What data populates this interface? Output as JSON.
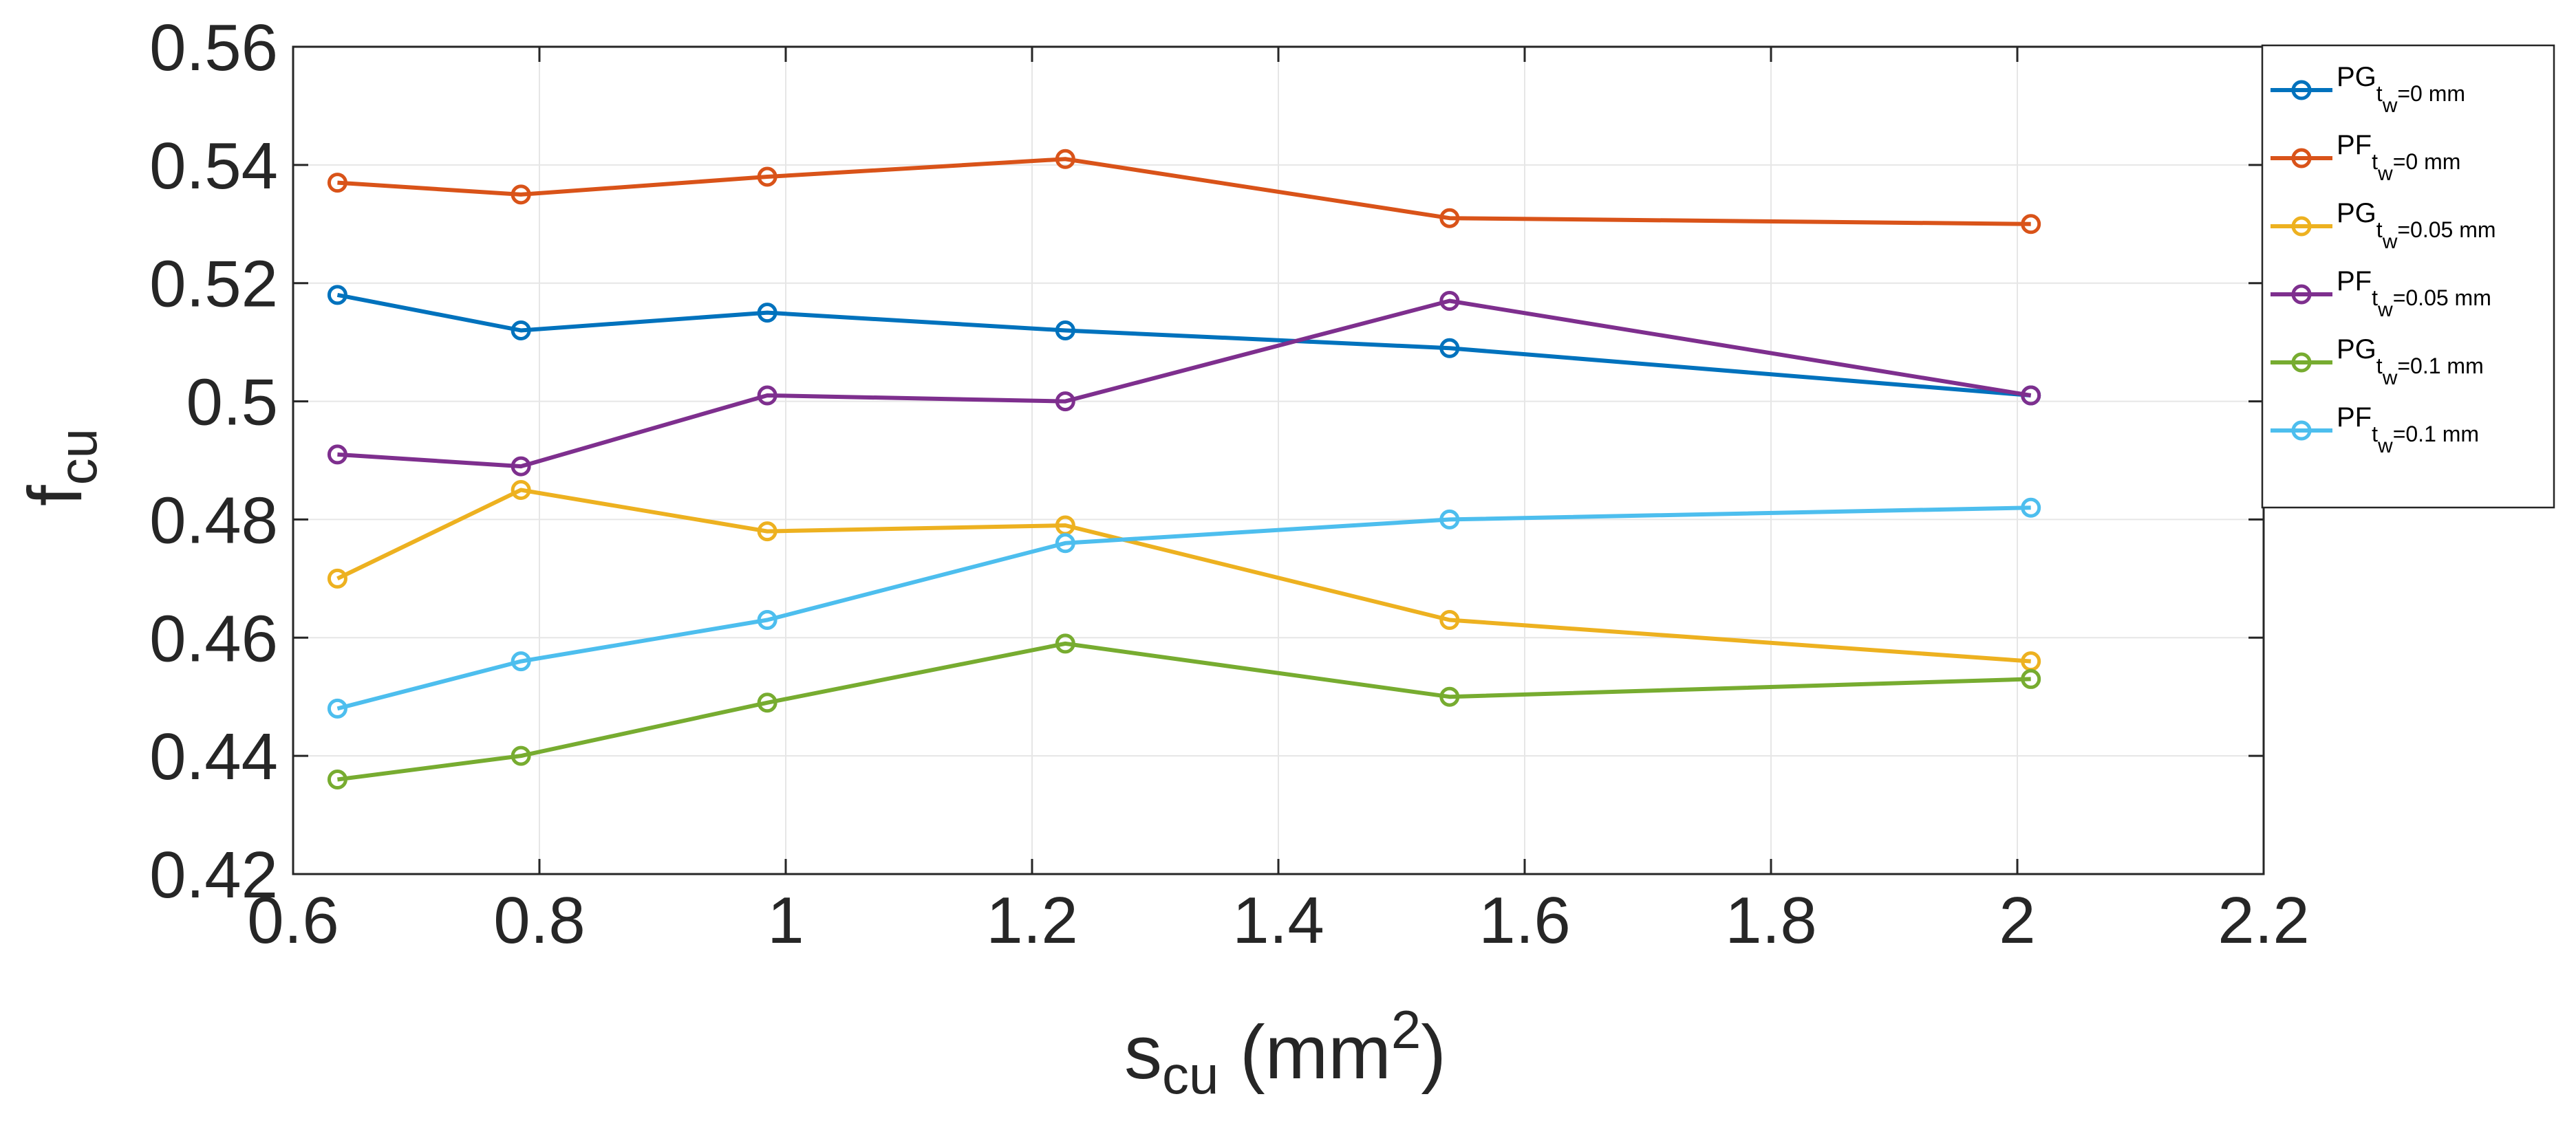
{
  "chart_data": {
    "type": "line",
    "title": "",
    "xlabel": {
      "base": "s",
      "sub": "cu",
      "unit_open": " (mm",
      "unit_sup": "2",
      "unit_close": ")"
    },
    "ylabel": {
      "base": "f",
      "sub": "cu"
    },
    "xlim": [
      0.6,
      2.2
    ],
    "ylim": [
      0.42,
      0.56
    ],
    "xticks": [
      0.6,
      0.8,
      1.0,
      1.2,
      1.4,
      1.6,
      1.8,
      2.0,
      2.2
    ],
    "yticks": [
      0.42,
      0.44,
      0.46,
      0.48,
      0.5,
      0.52,
      0.54,
      0.56
    ],
    "xtick_labels": [
      "0.6",
      "0.8",
      "1",
      "1.2",
      "1.4",
      "1.6",
      "1.8",
      "2",
      "2.2"
    ],
    "ytick_labels": [
      "0.42",
      "0.44",
      "0.46",
      "0.48",
      "0.5",
      "0.52",
      "0.54",
      "0.56"
    ],
    "grid": true,
    "legend_position": "outside-right-top",
    "x": [
      0.636,
      0.785,
      0.985,
      1.227,
      1.539,
      2.011
    ],
    "series": [
      {
        "name": "PG t_w=0 mm",
        "label_base": "PG",
        "label_sub": "t",
        "label_subsub": "w",
        "label_rest": "=0 mm",
        "color": "#0072BD",
        "values": [
          0.518,
          0.512,
          0.515,
          0.512,
          0.509,
          0.501
        ]
      },
      {
        "name": "PF t_w=0 mm",
        "label_base": "PF",
        "label_sub": "t",
        "label_subsub": "w",
        "label_rest": "=0 mm",
        "color": "#D95319",
        "values": [
          0.537,
          0.535,
          0.538,
          0.541,
          0.531,
          0.53
        ]
      },
      {
        "name": "PG t_w=0.05 mm",
        "label_base": "PG",
        "label_sub": "t",
        "label_subsub": "w",
        "label_rest": "=0.05 mm",
        "color": "#EDB120",
        "values": [
          0.47,
          0.485,
          0.478,
          0.479,
          0.463,
          0.456
        ]
      },
      {
        "name": "PF t_w=0.05 mm",
        "label_base": "PF",
        "label_sub": "t",
        "label_subsub": "w",
        "label_rest": "=0.05 mm",
        "color": "#7E2F8E",
        "values": [
          0.491,
          0.489,
          0.501,
          0.5,
          0.517,
          0.501
        ]
      },
      {
        "name": "PG t_w=0.1 mm",
        "label_base": "PG",
        "label_sub": "t",
        "label_subsub": "w",
        "label_rest": "=0.1 mm",
        "color": "#77AC30",
        "values": [
          0.436,
          0.44,
          0.449,
          0.459,
          0.45,
          0.453
        ]
      },
      {
        "name": "PF t_w=0.1 mm",
        "label_base": "PF",
        "label_sub": "t",
        "label_subsub": "w",
        "label_rest": "=0.1 mm",
        "color": "#4DBEEE",
        "values": [
          0.448,
          0.456,
          0.463,
          0.476,
          0.48,
          0.482
        ]
      }
    ]
  }
}
